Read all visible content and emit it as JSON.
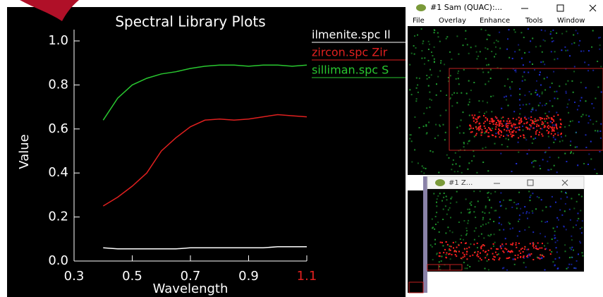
{
  "chart_data": {
    "type": "line",
    "title": "Spectral Library Plots",
    "x_label": "Wavelength",
    "y_label": "Value",
    "x": [
      0.4,
      0.45,
      0.5,
      0.55,
      0.6,
      0.65,
      0.7,
      0.75,
      0.8,
      0.85,
      0.9,
      0.95,
      1.0,
      1.05,
      1.1
    ],
    "series": [
      {
        "name": "ilmenite.spc Il",
        "color": "#ffffff",
        "values": [
          0.06,
          0.055,
          0.055,
          0.055,
          0.055,
          0.055,
          0.06,
          0.06,
          0.06,
          0.06,
          0.06,
          0.06,
          0.065,
          0.065,
          0.065
        ]
      },
      {
        "name": "zircon.spc Zir",
        "color": "#e0201f",
        "values": [
          0.25,
          0.29,
          0.34,
          0.4,
          0.5,
          0.56,
          0.61,
          0.64,
          0.645,
          0.64,
          0.645,
          0.655,
          0.665,
          0.66,
          0.655
        ]
      },
      {
        "name": "silliman.spc S",
        "color": "#29c830",
        "values": [
          0.64,
          0.74,
          0.8,
          0.83,
          0.85,
          0.86,
          0.875,
          0.885,
          0.89,
          0.89,
          0.885,
          0.89,
          0.89,
          0.885,
          0.89
        ]
      }
    ],
    "xlim": [
      0.3,
      1.1
    ],
    "ylim": [
      0,
      1.0
    ],
    "xticks": [
      0.3,
      0.5,
      0.7,
      0.9,
      1.1
    ],
    "yticks": [
      {
        "value": 0,
        "label": "0.0"
      },
      0.2,
      0.4,
      0.6,
      0.8,
      {
        "value": 1.0,
        "label": "1.0"
      }
    ]
  },
  "windows": [
    {
      "title": "#1 Sam (QUAC):...",
      "menu": [
        "File",
        "Overlay",
        "Enhance",
        "Tools",
        "Window"
      ]
    },
    {
      "title": "#1 Z..."
    }
  ]
}
